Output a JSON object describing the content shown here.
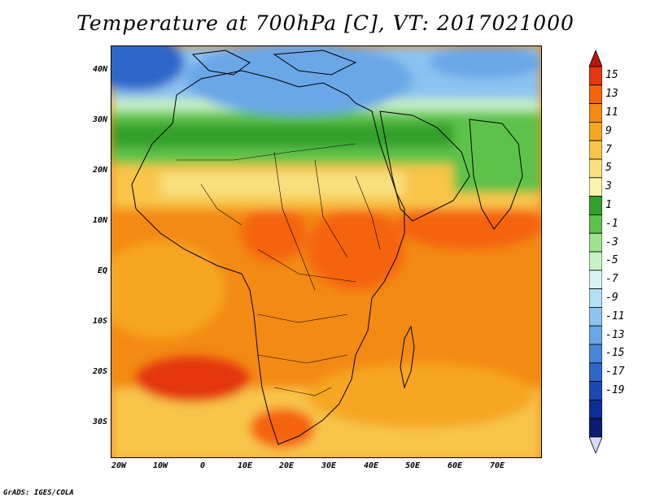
{
  "title": "Temperature at 700hPa [C], VT: 2017021000",
  "credit": "GrADS: IGES/COLA",
  "latitude_labels": [
    "40N",
    "30N",
    "20N",
    "10N",
    "EQ",
    "10S",
    "20S",
    "30S"
  ],
  "longitude_labels": [
    "20W",
    "10W",
    "0",
    "10E",
    "20E",
    "30E",
    "40E",
    "50E",
    "60E",
    "70E"
  ],
  "colorbar": {
    "labels": [
      "15",
      "13",
      "11",
      "9",
      "7",
      "5",
      "3",
      "1",
      "-1",
      "-3",
      "-5",
      "-7",
      "-9",
      "-11",
      "-13",
      "-15",
      "-17",
      "-19"
    ],
    "colors": [
      "#b8160c",
      "#e4360f",
      "#f5640f",
      "#f38a14",
      "#f6a620",
      "#f8c54a",
      "#f8e07e",
      "#fcf3b0",
      "#31a02c",
      "#5dc24a",
      "#9ee38e",
      "#c8f2c4",
      "#daf2f6",
      "#b2e0f5",
      "#8dc3f0",
      "#6aa6e8",
      "#4886dc",
      "#2e66ca",
      "#1c48b2",
      "#0e2e96",
      "#0a1b70",
      "#d9d9ff"
    ]
  },
  "map": {
    "region": "Africa, Arabia and western India",
    "field_colors": {
      "ocean_warm": "#f6a620",
      "land_hot": "#f5640f",
      "hottest": "#e4360f",
      "north_cool": "#5dc24a",
      "north_cold": "#8dc3f0",
      "north_coldest": "#2e66ca"
    }
  }
}
